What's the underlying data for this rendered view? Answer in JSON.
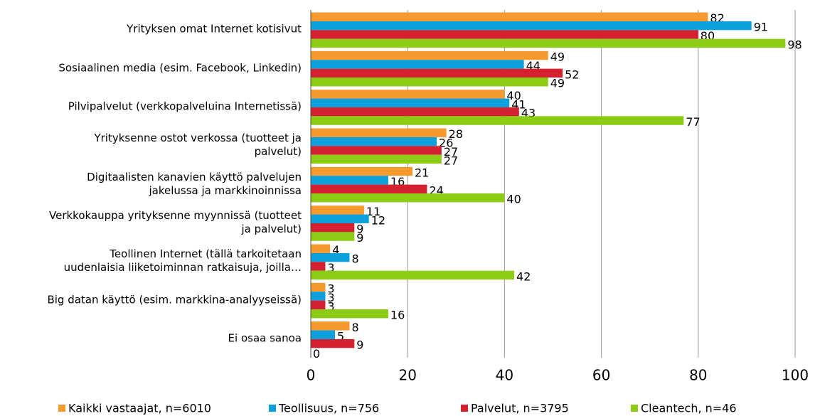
{
  "chart_data": {
    "type": "barh",
    "categories": [
      "Yrityksen omat Internet kotisivut",
      "Sosiaalinen media (esim. Facebook, Linkedin)",
      "Pilvipalvelut  (verkkopalveluina Internetissä)",
      "Yrityksenne ostot verkossa (tuotteet ja\npalvelut)",
      "Digitaalisten kanavien käyttö palvelujen\njakelussa ja markkinoinnissa",
      "Verkkokauppa yrityksenne myynnissä (tuotteet\nja palvelut)",
      "Teollinen Internet (tällä tarkoitetaan\nuudenlaisia liiketoiminnan ratkaisuja, joilla…",
      "Big datan käyttö (esim. markkina-analyyseissä)",
      "Ei osaa sanoa"
    ],
    "series": [
      {
        "name": "Kaikki vastaajat, n=6010",
        "color": "#f79a2e",
        "values": [
          82,
          49,
          40,
          28,
          21,
          11,
          4,
          3,
          8
        ]
      },
      {
        "name": "Teollisuus, n=756",
        "color": "#0ea0dc",
        "values": [
          91,
          44,
          41,
          26,
          16,
          12,
          8,
          3,
          5
        ]
      },
      {
        "name": "Palvelut, n=3795",
        "color": "#d4202f",
        "values": [
          80,
          52,
          43,
          27,
          24,
          9,
          3,
          3,
          9
        ]
      },
      {
        "name": "Cleantech, n=46",
        "color": "#8ccc14",
        "values": [
          98,
          49,
          77,
          27,
          40,
          9,
          42,
          16,
          0
        ]
      }
    ],
    "xlim": [
      0,
      100
    ],
    "xticks": [
      0,
      20,
      40,
      60,
      80,
      100
    ],
    "grid": true,
    "legend": "bottom"
  }
}
